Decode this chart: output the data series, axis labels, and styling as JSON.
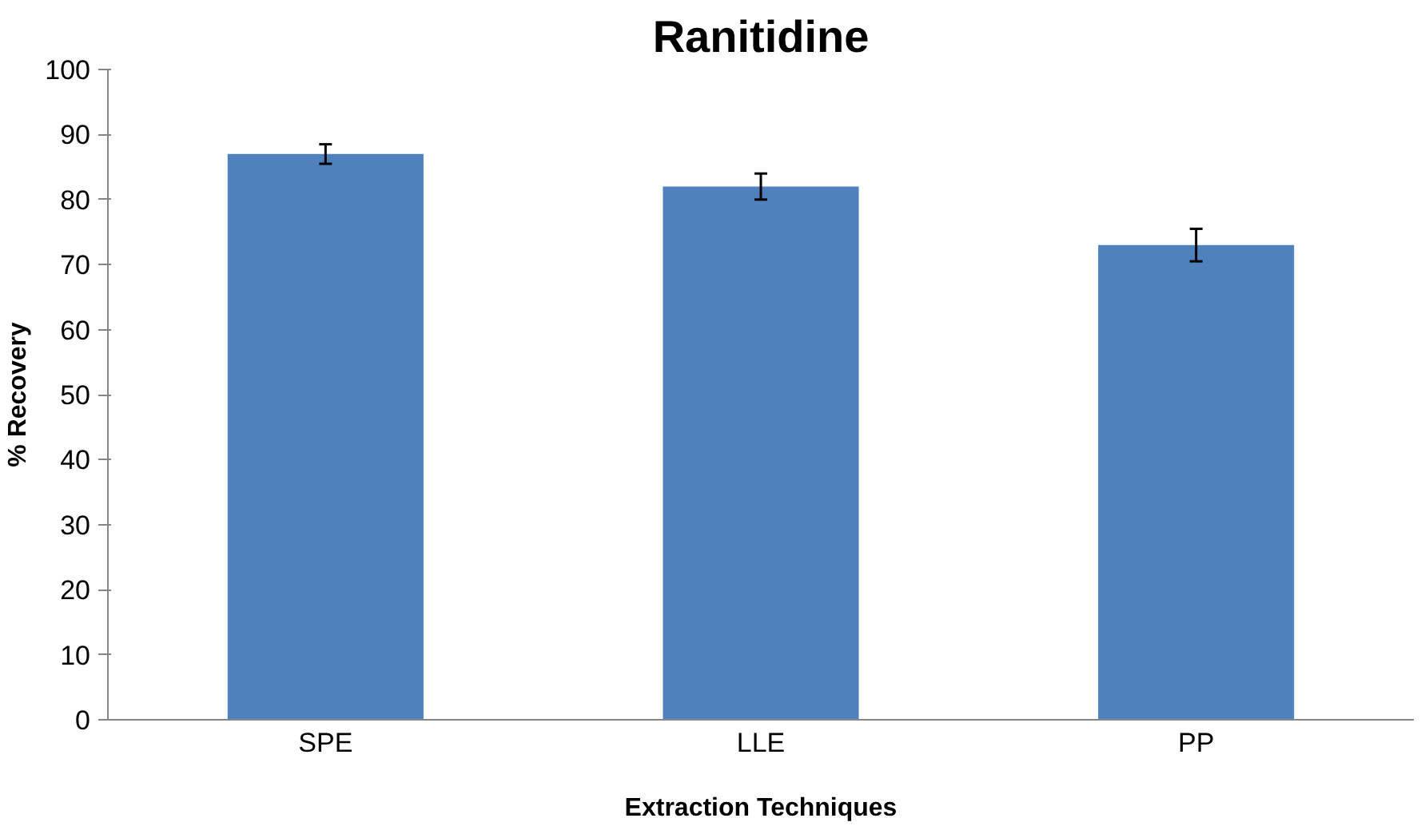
{
  "chart_data": {
    "type": "bar",
    "title": "Ranitidine",
    "xlabel": "Extraction Techniques",
    "ylabel": "% Recovery",
    "categories": [
      "SPE",
      "LLE",
      "PP"
    ],
    "values": [
      87,
      82,
      73
    ],
    "errors": [
      1.5,
      2,
      2.5
    ],
    "color": "#4f81bd",
    "ylim": [
      0,
      100
    ],
    "yticks": [
      0,
      10,
      20,
      30,
      40,
      50,
      60,
      70,
      80,
      90,
      100
    ],
    "grid": false
  }
}
